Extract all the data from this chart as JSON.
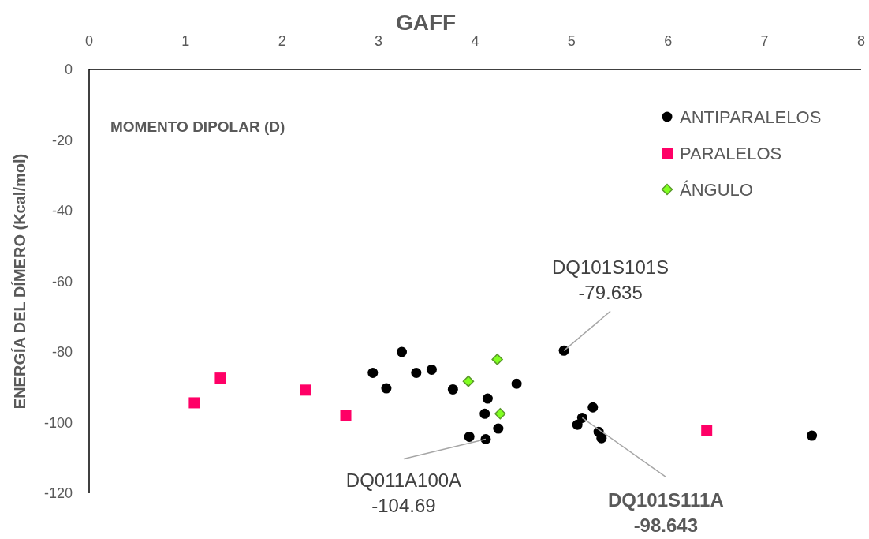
{
  "chart_data": {
    "type": "scatter",
    "title": "GAFF",
    "xlabel": "MOMENTO DIPOLAR (D)",
    "ylabel": "ENERGÍA DEL DÍMERO  (Kcal/mol)",
    "xlim": [
      0,
      8
    ],
    "xticks": [
      0,
      1,
      2,
      3,
      4,
      5,
      6,
      7,
      8
    ],
    "ylim": [
      -120,
      0
    ],
    "yticks": [
      -120,
      -100,
      -80,
      -60,
      -40,
      -20,
      0
    ],
    "grid": false,
    "legend": "top right",
    "series": [
      {
        "name": "ANTIPARALELOS",
        "color": "#000000",
        "marker": "circle",
        "x": [
          3.24,
          2.94,
          3.08,
          3.39,
          3.55,
          3.77,
          4.13,
          4.43,
          4.1,
          4.24,
          3.94,
          4.11,
          4.92,
          5.22,
          5.11,
          5.06,
          5.28,
          5.31,
          7.49
        ],
        "values": [
          -80,
          -85.9,
          -90.3,
          -85.9,
          -85,
          -90.6,
          -93.2,
          -89,
          -97.5,
          -101.7,
          -104,
          -104.69,
          -79.635,
          -95.7,
          -98.643,
          -100.6,
          -102.6,
          -104.4,
          -103.7
        ]
      },
      {
        "name": "PARALELOS",
        "color": "#ff0066",
        "marker": "square",
        "x": [
          1.09,
          1.36,
          2.24,
          2.66,
          6.4
        ],
        "values": [
          -94.4,
          -87.4,
          -90.8,
          -97.9,
          -102.2
        ]
      },
      {
        "name": "ÁNGULO",
        "color": "#80ff20",
        "marker": "diamond",
        "x": [
          4.23,
          3.93,
          4.26
        ],
        "values": [
          -82.1,
          -88.3,
          -97.5
        ]
      }
    ],
    "annotations": [
      {
        "text": "DQ101S101S\n-79.635",
        "x": 4.92,
        "y": -79.635
      },
      {
        "text": "DQ011A100A\n-104.69",
        "x": 4.11,
        "y": -104.69
      },
      {
        "text": "DQ101S111A\n-98.643",
        "x": 5.11,
        "y": -98.643
      }
    ]
  }
}
